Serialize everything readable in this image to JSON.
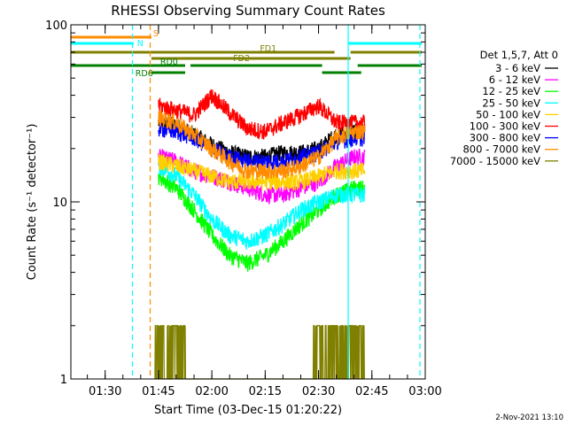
{
  "chart_data": {
    "type": "line",
    "title": "RHESSI Observing Summary Count Rates",
    "xlabel": "Start Time (03-Dec-15 01:20:22)",
    "ylabel": "Count Rate (s⁻¹ detector⁻¹)",
    "y_scale": "log",
    "ylim": [
      1,
      100
    ],
    "xlim": [
      "01:20:22",
      "03:00:00"
    ],
    "x_ticks": [
      "01:30",
      "01:45",
      "02:00",
      "02:15",
      "02:30",
      "02:45",
      "03:00"
    ],
    "y_ticks": [
      "1",
      "10",
      "100"
    ],
    "legend_title": "Det 1,5,7, Att 0",
    "legend_position": "right",
    "series": [
      {
        "name": "3 - 6 keV",
        "color": "#000000",
        "x": [
          "01:45",
          "01:50",
          "01:55",
          "02:00",
          "02:05",
          "02:10",
          "02:15",
          "02:20",
          "02:25",
          "02:30",
          "02:35",
          "02:40",
          "02:43"
        ],
        "values": [
          28,
          27,
          24,
          21,
          19,
          18,
          18,
          19,
          19,
          20,
          24,
          25,
          25
        ]
      },
      {
        "name": "6 - 12 keV",
        "color": "#ff00ff",
        "x": [
          "01:45",
          "01:50",
          "01:55",
          "02:00",
          "02:05",
          "02:10",
          "02:15",
          "02:20",
          "02:25",
          "02:30",
          "02:35",
          "02:40",
          "02:43"
        ],
        "values": [
          18,
          17,
          15,
          14,
          13,
          12,
          11,
          11,
          12,
          13,
          16,
          18,
          18
        ]
      },
      {
        "name": "12 - 25 keV",
        "color": "#00ff00",
        "x": [
          "01:45",
          "01:50",
          "01:55",
          "02:00",
          "02:05",
          "02:10",
          "02:15",
          "02:20",
          "02:25",
          "02:30",
          "02:35",
          "02:40",
          "02:43"
        ],
        "values": [
          14,
          12,
          9,
          6.5,
          5,
          4.5,
          5,
          6,
          7.5,
          9,
          11,
          12,
          12
        ]
      },
      {
        "name": "25 - 50 keV",
        "color": "#00ffff",
        "x": [
          "01:45",
          "01:50",
          "01:55",
          "02:00",
          "02:05",
          "02:10",
          "02:15",
          "02:20",
          "02:25",
          "02:30",
          "02:35",
          "02:40",
          "02:43"
        ],
        "values": [
          16,
          14,
          11,
          8,
          6.5,
          6,
          6.5,
          7.5,
          9,
          10,
          11,
          11,
          11
        ]
      },
      {
        "name": "50 - 100 keV",
        "color": "#ffd000",
        "x": [
          "01:45",
          "01:50",
          "01:55",
          "02:00",
          "02:05",
          "02:10",
          "02:15",
          "02:20",
          "02:25",
          "02:30",
          "02:35",
          "02:40",
          "02:43"
        ],
        "values": [
          17,
          16,
          15,
          14,
          13,
          13,
          13,
          13,
          13,
          14,
          15,
          15,
          15
        ]
      },
      {
        "name": "100 - 300 keV",
        "color": "#ff0000",
        "x": [
          "01:45",
          "01:50",
          "01:55",
          "02:00",
          "02:05",
          "02:10",
          "02:15",
          "02:20",
          "02:25",
          "02:30",
          "02:35",
          "02:40",
          "02:43"
        ],
        "values": [
          35,
          33,
          31,
          40,
          32,
          26,
          25,
          28,
          31,
          35,
          28,
          28,
          28
        ]
      },
      {
        "name": "300 - 800 keV",
        "color": "#0000ff",
        "x": [
          "01:45",
          "01:50",
          "01:55",
          "02:00",
          "02:05",
          "02:10",
          "02:15",
          "02:20",
          "02:25",
          "02:30",
          "02:35",
          "02:40",
          "02:43"
        ],
        "values": [
          26,
          25,
          23,
          20,
          18,
          17,
          17,
          17,
          18,
          19,
          22,
          23,
          23
        ]
      },
      {
        "name": "800 - 7000 keV",
        "color": "#ff8c00",
        "x": [
          "01:45",
          "01:50",
          "01:55",
          "02:00",
          "02:05",
          "02:10",
          "02:15",
          "02:20",
          "02:25",
          "02:30",
          "02:35",
          "02:40",
          "02:43"
        ],
        "values": [
          30,
          28,
          24,
          20,
          17,
          15,
          15,
          15,
          16,
          18,
          23,
          25,
          25
        ]
      },
      {
        "name": "7000 - 15000 keV",
        "color": "#808000",
        "x": [
          "01:44",
          "01:45",
          "01:47",
          "01:50",
          "01:52",
          "01:53",
          "02:28",
          "02:30",
          "02:35",
          "02:40",
          "02:42",
          "02:43"
        ],
        "values": [
          1,
          2,
          1.5,
          1.8,
          1.5,
          1,
          1,
          1.6,
          1.8,
          1.7,
          1.6,
          1
        ]
      }
    ],
    "flags": [
      {
        "label": "S",
        "color": "#ff8c00",
        "segments": [
          [
            "01:20:22",
            "01:43:00"
          ]
        ]
      },
      {
        "label": "N",
        "color": "#00ffff",
        "segments": [
          [
            "01:20:22",
            "01:38:00"
          ],
          [
            "02:38:20",
            "02:59:00"
          ]
        ]
      },
      {
        "label": "FD1",
        "color": "#808000",
        "segments": [
          [
            "01:20:22",
            "02:34:30"
          ],
          [
            "02:39:00",
            "02:59:00"
          ]
        ]
      },
      {
        "label": "FD2",
        "color": "#808000",
        "segments": [
          [
            "01:43:00",
            "02:39:00"
          ]
        ]
      },
      {
        "label": "RD0",
        "color": "#008000",
        "segments": [
          [
            "01:20:22",
            "01:52:30"
          ],
          [
            "01:54:00",
            "02:31:00"
          ],
          [
            "02:41:00",
            "02:59:00"
          ]
        ]
      },
      {
        "label": "RD6",
        "color": "#008000",
        "segments": [
          [
            "01:43:00",
            "01:52:30"
          ],
          [
            "02:31:00",
            "02:42:00"
          ]
        ]
      }
    ],
    "vlines": [
      {
        "t": "01:37:40",
        "color": "#00ffff",
        "style": "dashed"
      },
      {
        "t": "01:42:40",
        "color": "#ff8c00",
        "style": "dashed"
      },
      {
        "t": "02:38:20",
        "color": "#00ffff",
        "style": "solid"
      },
      {
        "t": "02:58:30",
        "color": "#00ffff",
        "style": "dashed"
      }
    ],
    "timestamp": "2-Nov-2021 13:10"
  }
}
